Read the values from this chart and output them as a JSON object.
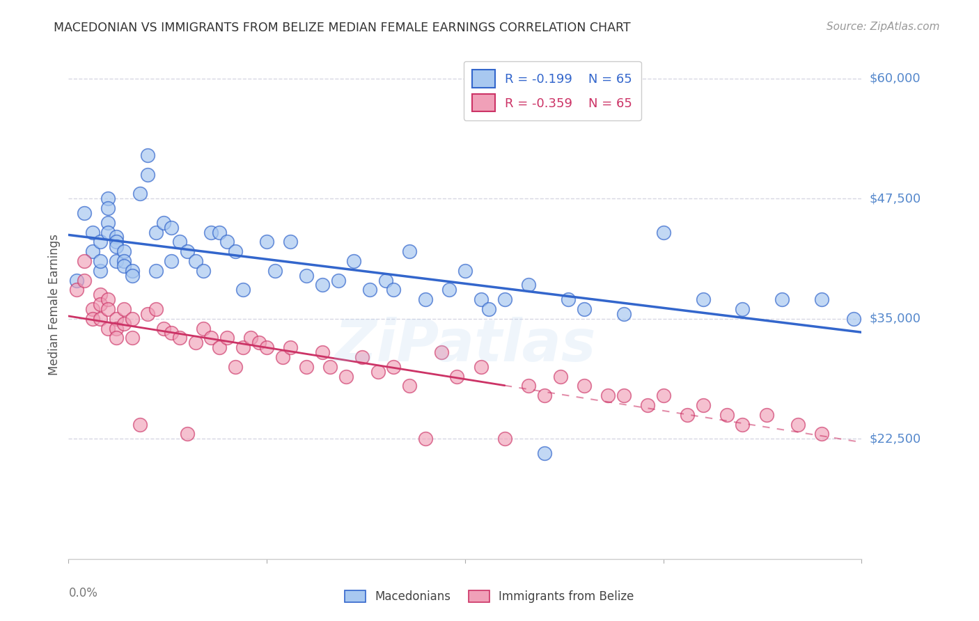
{
  "title": "MACEDONIAN VS IMMIGRANTS FROM BELIZE MEDIAN FEMALE EARNINGS CORRELATION CHART",
  "source": "Source: ZipAtlas.com",
  "ylabel": "Median Female Earnings",
  "xlim": [
    0.0,
    0.1
  ],
  "ylim": [
    10000,
    63000
  ],
  "legend_blue_r": "R = -0.199",
  "legend_blue_n": "N = 65",
  "legend_pink_r": "R = -0.359",
  "legend_pink_n": "N = 65",
  "blue_scatter_color": "#A8C8F0",
  "pink_scatter_color": "#F0A0B8",
  "blue_line_color": "#3366CC",
  "pink_line_color": "#CC3366",
  "grid_color": "#CCCCDD",
  "title_color": "#333333",
  "source_color": "#999999",
  "ytick_label_color": "#5588CC",
  "watermark": "ZiPatlas",
  "watermark_color": "#AACCEE",
  "blue_x": [
    0.001,
    0.002,
    0.003,
    0.003,
    0.004,
    0.004,
    0.004,
    0.005,
    0.005,
    0.005,
    0.005,
    0.006,
    0.006,
    0.006,
    0.006,
    0.007,
    0.007,
    0.007,
    0.008,
    0.008,
    0.009,
    0.01,
    0.01,
    0.011,
    0.011,
    0.012,
    0.013,
    0.013,
    0.014,
    0.015,
    0.016,
    0.017,
    0.018,
    0.019,
    0.02,
    0.021,
    0.022,
    0.025,
    0.026,
    0.028,
    0.03,
    0.032,
    0.034,
    0.036,
    0.038,
    0.04,
    0.041,
    0.043,
    0.045,
    0.048,
    0.05,
    0.052,
    0.053,
    0.055,
    0.058,
    0.06,
    0.063,
    0.065,
    0.07,
    0.075,
    0.08,
    0.085,
    0.09,
    0.095,
    0.099
  ],
  "blue_y": [
    39000,
    46000,
    44000,
    42000,
    43000,
    40000,
    41000,
    47500,
    46500,
    45000,
    44000,
    43500,
    43000,
    42500,
    41000,
    42000,
    41000,
    40500,
    40000,
    39500,
    48000,
    52000,
    50000,
    44000,
    40000,
    45000,
    44500,
    41000,
    43000,
    42000,
    41000,
    40000,
    44000,
    44000,
    43000,
    42000,
    38000,
    43000,
    40000,
    43000,
    39500,
    38500,
    39000,
    41000,
    38000,
    39000,
    38000,
    42000,
    37000,
    38000,
    40000,
    37000,
    36000,
    37000,
    38500,
    21000,
    37000,
    36000,
    35500,
    44000,
    37000,
    36000,
    37000,
    37000,
    35000
  ],
  "pink_x": [
    0.001,
    0.002,
    0.002,
    0.003,
    0.003,
    0.004,
    0.004,
    0.004,
    0.005,
    0.005,
    0.005,
    0.006,
    0.006,
    0.006,
    0.007,
    0.007,
    0.008,
    0.008,
    0.009,
    0.01,
    0.011,
    0.012,
    0.013,
    0.014,
    0.015,
    0.016,
    0.017,
    0.018,
    0.019,
    0.02,
    0.021,
    0.022,
    0.023,
    0.024,
    0.025,
    0.027,
    0.028,
    0.03,
    0.032,
    0.033,
    0.035,
    0.037,
    0.039,
    0.041,
    0.043,
    0.045,
    0.047,
    0.049,
    0.052,
    0.055,
    0.058,
    0.06,
    0.062,
    0.065,
    0.068,
    0.07,
    0.073,
    0.075,
    0.078,
    0.08,
    0.083,
    0.085,
    0.088,
    0.092,
    0.095
  ],
  "pink_y": [
    38000,
    41000,
    39000,
    36000,
    35000,
    37500,
    36500,
    35000,
    37000,
    36000,
    34000,
    35000,
    34000,
    33000,
    36000,
    34500,
    35000,
    33000,
    24000,
    35500,
    36000,
    34000,
    33500,
    33000,
    23000,
    32500,
    34000,
    33000,
    32000,
    33000,
    30000,
    32000,
    33000,
    32500,
    32000,
    31000,
    32000,
    30000,
    31500,
    30000,
    29000,
    31000,
    29500,
    30000,
    28000,
    22500,
    31500,
    29000,
    30000,
    22500,
    28000,
    27000,
    29000,
    28000,
    27000,
    27000,
    26000,
    27000,
    25000,
    26000,
    25000,
    24000,
    25000,
    24000,
    23000
  ],
  "ytick_positions": [
    22500,
    35000,
    47500,
    60000
  ],
  "ytick_labels": [
    "$22,500",
    "$35,000",
    "$47,500",
    "$60,000"
  ]
}
